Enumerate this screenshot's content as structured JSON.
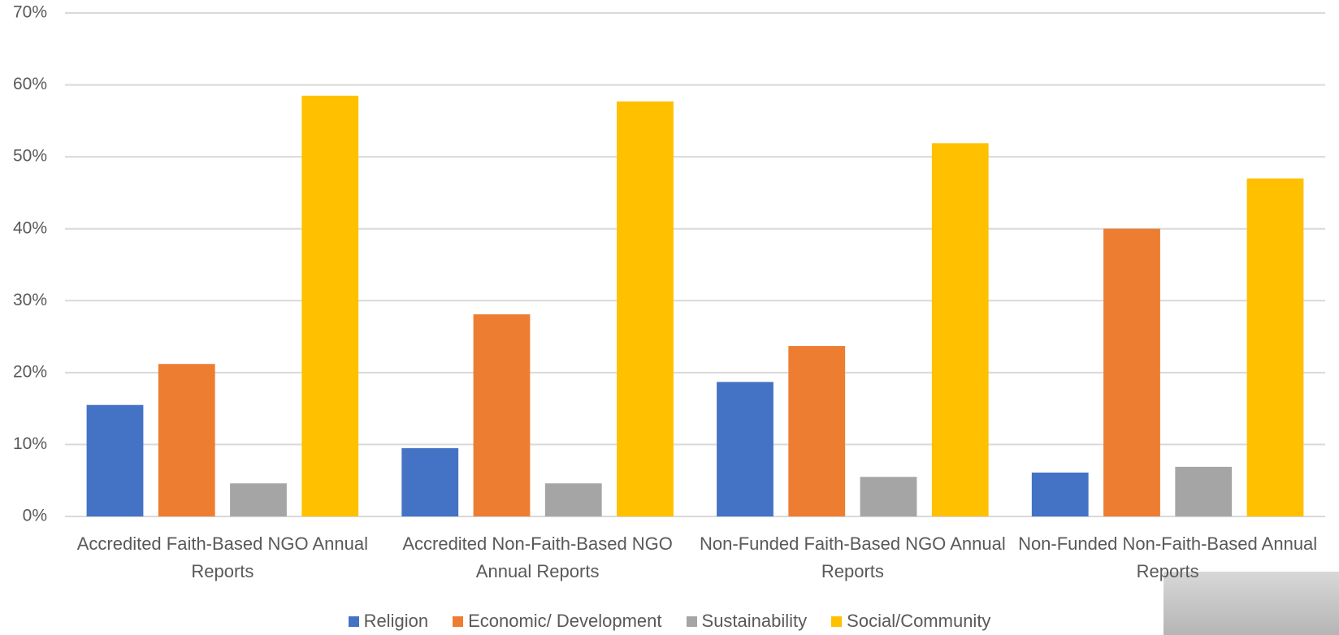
{
  "chart_data": {
    "type": "bar",
    "categories": [
      "Accredited Faith-Based NGO Annual Reports",
      "Accredited Non-Faith-Based NGO Annual Reports",
      "Non-Funded Faith-Based NGO Annual Reports",
      "Non-Funded Non-Faith-Based Annual Reports"
    ],
    "series": [
      {
        "name": "Religion",
        "color": "#4472c4",
        "values": [
          15.5,
          9.5,
          18.7,
          6.1
        ]
      },
      {
        "name": "Economic/ Development",
        "color": "#ed7d31",
        "values": [
          21.2,
          28.1,
          23.7,
          40
        ]
      },
      {
        "name": "Sustainability",
        "color": "#a5a5a5",
        "values": [
          4.6,
          4.6,
          5.5,
          6.9
        ]
      },
      {
        "name": "Social/Community",
        "color": "#ffc000",
        "values": [
          58.5,
          57.7,
          51.9,
          47
        ]
      }
    ],
    "ylim": [
      0,
      70
    ],
    "yticks": [
      {
        "value": 0,
        "label": "0%"
      },
      {
        "value": 10,
        "label": "10%"
      },
      {
        "value": 20,
        "label": "20%"
      },
      {
        "value": 30,
        "label": "30%"
      },
      {
        "value": 40,
        "label": "40%"
      },
      {
        "value": 50,
        "label": "50%"
      },
      {
        "value": 60,
        "label": "60%"
      },
      {
        "value": 70,
        "label": "70%"
      }
    ],
    "grid": true
  }
}
